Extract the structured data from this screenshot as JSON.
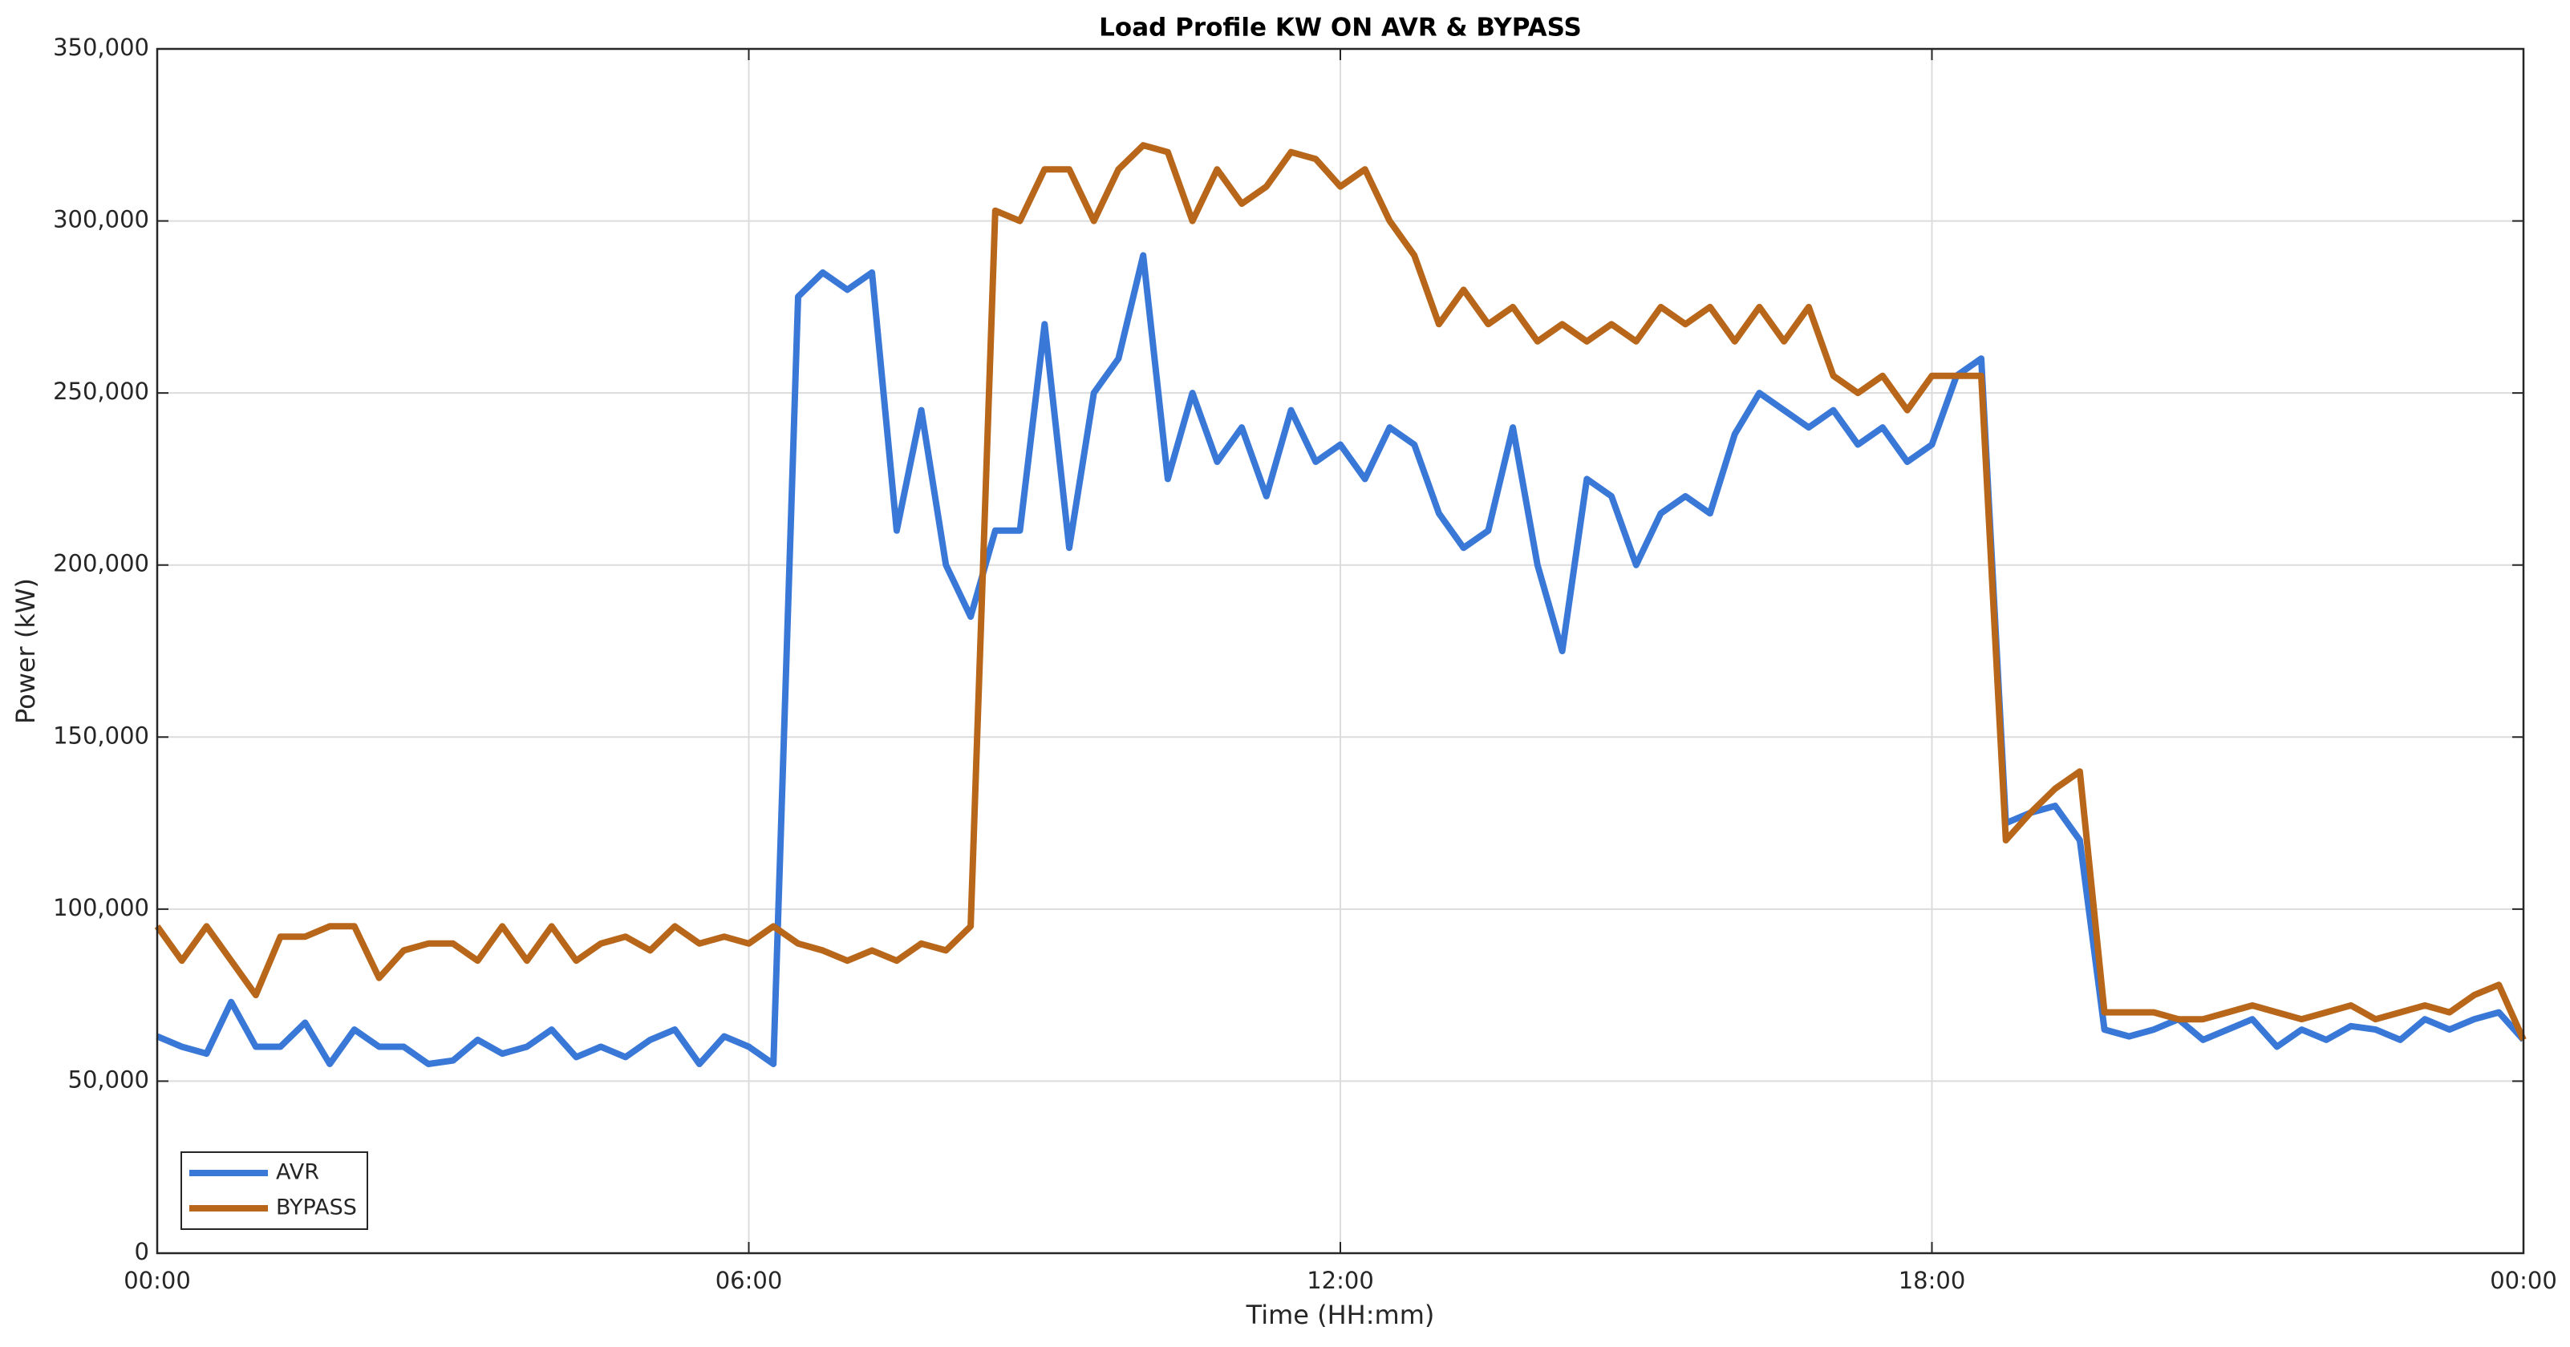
{
  "chart_data": {
    "type": "line",
    "title": "Load Profile KW ON AVR & BYPASS",
    "xlabel": "Time (HH:mm)",
    "ylabel": "Power (kW)",
    "x": [
      0,
      0.25,
      0.5,
      0.75,
      1,
      1.25,
      1.5,
      1.75,
      2,
      2.25,
      2.5,
      2.75,
      3,
      3.25,
      3.5,
      3.75,
      4,
      4.25,
      4.5,
      4.75,
      5,
      5.25,
      5.5,
      5.75,
      6,
      6.25,
      6.5,
      6.75,
      7,
      7.25,
      7.5,
      7.75,
      8,
      8.25,
      8.5,
      8.75,
      9,
      9.25,
      9.5,
      9.75,
      10,
      10.25,
      10.5,
      10.75,
      11,
      11.25,
      11.5,
      11.75,
      12,
      12.25,
      12.5,
      12.75,
      13,
      13.25,
      13.5,
      13.75,
      14,
      14.25,
      14.5,
      14.75,
      15,
      15.25,
      15.5,
      15.75,
      16,
      16.25,
      16.5,
      16.75,
      17,
      17.25,
      17.5,
      17.75,
      18,
      18.25,
      18.5,
      18.75,
      19,
      19.25,
      19.5,
      19.75,
      20,
      20.25,
      20.5,
      20.75,
      21,
      21.25,
      21.5,
      21.75,
      22,
      22.25,
      22.5,
      22.75,
      23,
      23.25,
      23.5,
      23.75,
      24
    ],
    "series": [
      {
        "name": "AVR",
        "color": "#3a78d8",
        "values": [
          63000,
          60000,
          58000,
          73000,
          60000,
          60000,
          67000,
          55000,
          65000,
          60000,
          60000,
          55000,
          56000,
          62000,
          58000,
          60000,
          65000,
          57000,
          60000,
          57000,
          62000,
          65000,
          55000,
          63000,
          60000,
          55000,
          278000,
          285000,
          280000,
          285000,
          210000,
          245000,
          200000,
          185000,
          210000,
          210000,
          270000,
          205000,
          250000,
          260000,
          290000,
          225000,
          250000,
          230000,
          240000,
          220000,
          245000,
          230000,
          235000,
          225000,
          240000,
          235000,
          215000,
          205000,
          210000,
          240000,
          200000,
          175000,
          225000,
          220000,
          200000,
          215000,
          220000,
          215000,
          238000,
          250000,
          245000,
          240000,
          245000,
          235000,
          240000,
          230000,
          235000,
          255000,
          260000,
          125000,
          128000,
          130000,
          120000,
          65000,
          63000,
          65000,
          68000,
          62000,
          65000,
          68000,
          60000,
          65000,
          62000,
          66000,
          65000,
          62000,
          68000,
          65000,
          68000,
          70000,
          62000
        ]
      },
      {
        "name": "BYPASS",
        "color": "#b8661a",
        "values": [
          95000,
          85000,
          95000,
          85000,
          75000,
          92000,
          92000,
          95000,
          95000,
          80000,
          88000,
          90000,
          90000,
          85000,
          95000,
          85000,
          95000,
          85000,
          90000,
          92000,
          88000,
          95000,
          90000,
          92000,
          90000,
          95000,
          90000,
          88000,
          85000,
          88000,
          85000,
          90000,
          88000,
          95000,
          303000,
          300000,
          315000,
          315000,
          300000,
          315000,
          322000,
          320000,
          300000,
          315000,
          305000,
          310000,
          320000,
          318000,
          310000,
          315000,
          300000,
          290000,
          270000,
          280000,
          270000,
          275000,
          265000,
          270000,
          265000,
          270000,
          265000,
          275000,
          270000,
          275000,
          265000,
          275000,
          265000,
          275000,
          255000,
          250000,
          255000,
          245000,
          255000,
          255000,
          255000,
          120000,
          128000,
          135000,
          140000,
          70000,
          70000,
          70000,
          68000,
          68000,
          70000,
          72000,
          70000,
          68000,
          70000,
          72000,
          68000,
          70000,
          72000,
          70000,
          75000,
          78000,
          62000
        ]
      }
    ],
    "xlim": [
      0,
      24
    ],
    "xticks": [
      {
        "value": 0,
        "label": "00:00"
      },
      {
        "value": 6,
        "label": "06:00"
      },
      {
        "value": 12,
        "label": "12:00"
      },
      {
        "value": 18,
        "label": "18:00"
      },
      {
        "value": 24,
        "label": "00:00"
      }
    ],
    "ylim": [
      0,
      350000
    ],
    "yticks": [
      0,
      {
        "value": 50000,
        "label": "50,000"
      },
      {
        "value": 100000,
        "label": "100,000"
      },
      {
        "value": 150000,
        "label": "150,000"
      },
      {
        "value": 200000,
        "label": "200,000"
      },
      {
        "value": 250000,
        "label": "250,000"
      },
      {
        "value": 300000,
        "label": "300,000"
      },
      {
        "value": 350000,
        "label": "350,000"
      }
    ],
    "grid": true,
    "legend": "lower left"
  }
}
